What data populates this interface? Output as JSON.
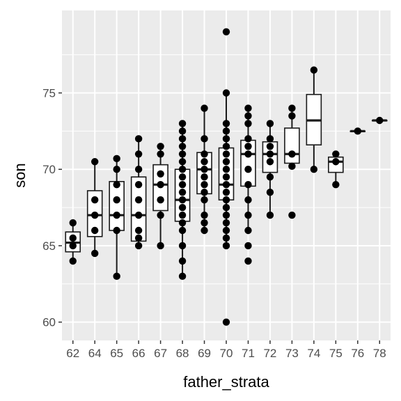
{
  "chart_data": {
    "type": "boxplot",
    "title": "",
    "xlabel": "father_strata",
    "ylabel": "son",
    "ylim": [
      58.8,
      80.4
    ],
    "yticks": [
      60,
      65,
      70,
      75
    ],
    "grid": true,
    "colors": {
      "panel": "#ebebeb",
      "grid": "#ffffff",
      "box_fill": "#ffffff",
      "box_stroke": "#1a1a1a",
      "point": "#000000",
      "tick_text": "#4d4d4d"
    },
    "categories": [
      "62",
      "64",
      "65",
      "66",
      "67",
      "68",
      "69",
      "70",
      "71",
      "72",
      "73",
      "74",
      "75",
      "76",
      "78"
    ],
    "boxes": [
      {
        "category": "62",
        "min": 64.0,
        "q1": 64.6,
        "median": 65.2,
        "q3": 65.9,
        "max": 66.5
      },
      {
        "category": "64",
        "min": 64.5,
        "q1": 65.6,
        "median": 67.0,
        "q3": 68.6,
        "max": 70.5
      },
      {
        "category": "65",
        "min": 63.0,
        "q1": 66.0,
        "median": 67.0,
        "q3": 69.2,
        "max": 70.7
      },
      {
        "category": "66",
        "min": 65.0,
        "q1": 65.3,
        "median": 67.0,
        "q3": 69.5,
        "max": 72.0
      },
      {
        "category": "67",
        "min": 65.0,
        "q1": 67.3,
        "median": 69.0,
        "q3": 70.3,
        "max": 71.5
      },
      {
        "category": "68",
        "min": 63.0,
        "q1": 66.6,
        "median": 68.0,
        "q3": 70.0,
        "max": 73.0
      },
      {
        "category": "69",
        "min": 66.0,
        "q1": 68.4,
        "median": 70.0,
        "q3": 71.1,
        "max": 74.0
      },
      {
        "category": "70",
        "min": 65.0,
        "q1": 68.0,
        "median": 69.0,
        "q3": 71.4,
        "max": 75.0
      },
      {
        "category": "71",
        "min": 66.0,
        "q1": 68.9,
        "median": 71.0,
        "q3": 71.9,
        "max": 74.0
      },
      {
        "category": "72",
        "min": 67.0,
        "q1": 69.8,
        "median": 71.0,
        "q3": 71.8,
        "max": 73.0
      },
      {
        "category": "73",
        "min": 70.2,
        "q1": 70.4,
        "median": 71.0,
        "q3": 72.7,
        "max": 74.0
      },
      {
        "category": "74",
        "min": 70.0,
        "q1": 71.6,
        "median": 73.2,
        "q3": 74.9,
        "max": 76.5
      },
      {
        "category": "75",
        "min": 69.0,
        "q1": 69.8,
        "median": 70.5,
        "q3": 70.8,
        "max": 71.0
      },
      {
        "category": "76",
        "min": 72.5,
        "q1": 72.5,
        "median": 72.5,
        "q3": 72.5,
        "max": 72.5
      },
      {
        "category": "78",
        "min": 73.2,
        "q1": 73.2,
        "median": 73.2,
        "q3": 73.2,
        "max": 73.2
      }
    ],
    "points": {
      "62": [
        64.0,
        65.0,
        65.5,
        66.5
      ],
      "64": [
        64.5,
        66.0,
        67.0,
        68.0,
        70.5
      ],
      "65": [
        63.0,
        66.0,
        67.0,
        68.0,
        69.0,
        70.0,
        70.7
      ],
      "66": [
        65.0,
        65.5,
        66.0,
        67.0,
        68.0,
        69.0,
        70.0,
        71.0,
        72.0
      ],
      "67": [
        65.0,
        67.0,
        68.0,
        69.0,
        69.7,
        71.0,
        71.5
      ],
      "68": [
        63.0,
        64.0,
        65.0,
        66.0,
        66.5,
        67.0,
        67.5,
        68.0,
        68.5,
        69.0,
        69.5,
        70.0,
        70.5,
        71.0,
        71.5,
        72.0,
        72.5,
        73.0
      ],
      "69": [
        66.0,
        66.5,
        67.0,
        68.0,
        68.5,
        69.0,
        69.5,
        70.0,
        70.5,
        71.0,
        72.0,
        74.0
      ],
      "70": [
        60.0,
        65.0,
        65.5,
        66.0,
        66.5,
        67.0,
        67.5,
        68.0,
        68.5,
        69.0,
        69.5,
        70.0,
        70.5,
        71.0,
        71.5,
        72.0,
        72.5,
        73.0,
        75.0,
        79.0
      ],
      "71": [
        64.0,
        65.0,
        66.0,
        67.0,
        68.0,
        69.0,
        70.0,
        71.0,
        71.5,
        72.0,
        73.0,
        73.5,
        74.0
      ],
      "72": [
        67.0,
        68.5,
        69.5,
        70.5,
        71.0,
        71.5,
        72.0,
        73.0
      ],
      "73": [
        67.0,
        70.2,
        71.0,
        73.5,
        74.0
      ],
      "74": [
        70.0,
        76.5
      ],
      "75": [
        69.0,
        70.5,
        71.0
      ],
      "76": [
        72.5
      ],
      "78": [
        73.2
      ]
    }
  }
}
